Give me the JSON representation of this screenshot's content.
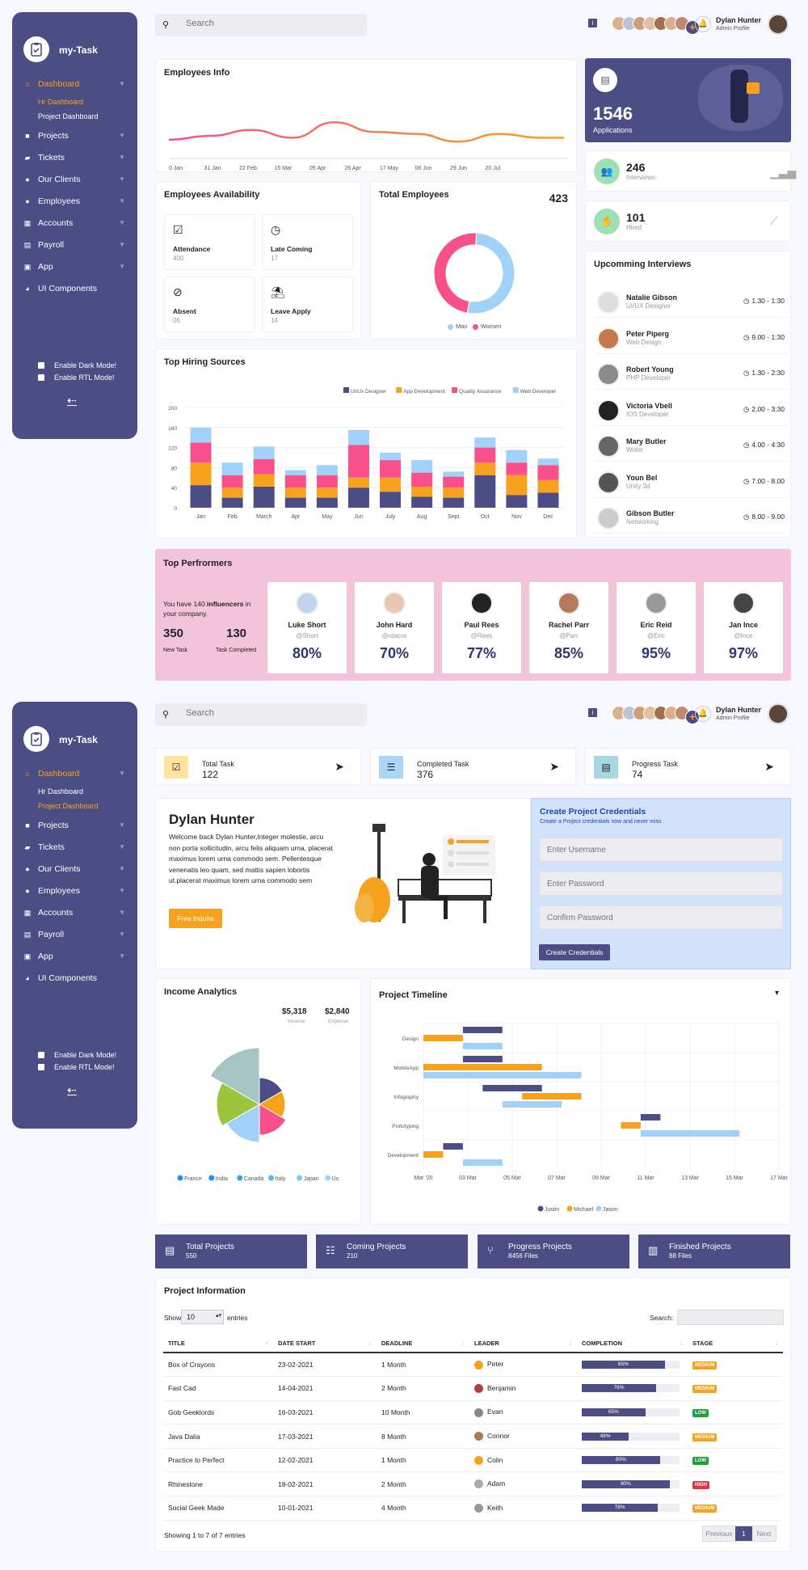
{
  "app": {
    "name": "my-Task"
  },
  "header": {
    "search_placeholder": "Search",
    "info_badge": "i",
    "add_symbol": "+",
    "user_name": "Dylan Hunter",
    "user_role": "Admin Profile"
  },
  "sidebar": {
    "items": [
      {
        "label": "Dashboard",
        "icon": "home-icon"
      },
      {
        "label": "Projects",
        "icon": "briefcase-icon"
      },
      {
        "label": "Tickets",
        "icon": "ticket-icon"
      },
      {
        "label": "Our Clients",
        "icon": "user-icon"
      },
      {
        "label": "Employees",
        "icon": "users-icon"
      },
      {
        "label": "Accounts",
        "icon": "calculator-icon"
      },
      {
        "label": "Payroll",
        "icon": "wallet-icon"
      },
      {
        "label": "App",
        "icon": "app-icon"
      },
      {
        "label": "UI Components",
        "icon": "palette-icon"
      }
    ],
    "sub_items": [
      "Hr Dashboard",
      "Project Dashboard"
    ],
    "dark_mode": "Enable Dark Mode!",
    "rtl_mode": "Enable RTL Mode!",
    "back_arrow": "⇠"
  },
  "hr": {
    "employees_info": {
      "title": "Employees Info",
      "x_labels": [
        "0 Jan",
        "31 Jan",
        "22 Feb",
        "15 Mar",
        "05 Apr",
        "26 Apr",
        "17 May",
        "08 Jun",
        "29 Jun",
        "20 Jul"
      ]
    },
    "availability": {
      "title": "Employees Availability",
      "items": [
        {
          "label": "Attendance",
          "value": "400"
        },
        {
          "label": "Late Coming",
          "value": "17"
        },
        {
          "label": "Absent",
          "value": "06"
        },
        {
          "label": "Leave Apply",
          "value": "14"
        }
      ]
    },
    "total_employees": {
      "title": "Total Employees",
      "value": "423",
      "legend": [
        "Man",
        "Women"
      ]
    },
    "applications": {
      "value": "1546",
      "label": "Applications"
    },
    "interviews": {
      "value": "246",
      "label": "Interviews"
    },
    "hired": {
      "value": "101",
      "label": "Hired"
    },
    "upcoming": {
      "title": "Upcomming Interviews",
      "rows": [
        {
          "name": "Natalie Gibson",
          "role": "UI/UX Designer",
          "time": "1.30 - 1:30"
        },
        {
          "name": "Peter Piperg",
          "role": "Web Design",
          "time": "9.00 - 1:30"
        },
        {
          "name": "Robert Young",
          "role": "PHP Developer",
          "time": "1.30 - 2:30"
        },
        {
          "name": "Victoria Vbell",
          "role": "IOS Developer",
          "time": "2.00 - 3:30"
        },
        {
          "name": "Mary Butler",
          "role": "Writer",
          "time": "4.00 - 4:30"
        },
        {
          "name": "Youn Bel",
          "role": "Unity 3d",
          "time": "7.00 - 8.00"
        },
        {
          "name": "Gibson Butler",
          "role": "Networking",
          "time": "8.00 - 9.00"
        }
      ]
    },
    "performers": {
      "title": "Top Perfrormers",
      "intro_prefix": "You have 140 ",
      "intro_bold": "influencers",
      "intro_suffix": " in your company.",
      "new_task_value": "350",
      "new_task_label": "New Task",
      "completed_value": "130",
      "completed_label": "Task Completed",
      "people": [
        {
          "name": "Luke Short",
          "handle": "@Short",
          "pct": "80%"
        },
        {
          "name": "John Hard",
          "handle": "@rdacre",
          "pct": "70%"
        },
        {
          "name": "Paul Rees",
          "handle": "@Rees",
          "pct": "77%"
        },
        {
          "name": "Rachel Parr",
          "handle": "@Parr",
          "pct": "85%"
        },
        {
          "name": "Eric Reid",
          "handle": "@Eric",
          "pct": "95%"
        },
        {
          "name": "Jan Ince",
          "handle": "@Ince",
          "pct": "97%"
        }
      ]
    }
  },
  "hiring": {
    "title": "Top Hiring Sources"
  },
  "project": {
    "stats": [
      {
        "label": "Total Task",
        "value": "122"
      },
      {
        "label": "Completed Task",
        "value": "376"
      },
      {
        "label": "Progress Task",
        "value": "74"
      }
    ],
    "welcome": {
      "name": "Dylan Hunter",
      "text": "Welcome back Dylan Hunter,Integer molestie, arcu non porta sollicitudin, arcu felis aliquam urna, placerat maximus lorem urna commodo sem. Pellentesque venenatis leo quam, sed mattis sapien lobortis ut.placerat maximus lorem urna commodo sem",
      "button": "Free Inquire"
    },
    "credentials": {
      "title": "Create Project Credentials",
      "subtitle": "Create a Project credentials now and never miss",
      "username": "Enter Username",
      "password": "Enter Password",
      "confirm": "Confirm Password",
      "button": "Create Credentials"
    },
    "income": {
      "title": "Income Analytics",
      "income_value": "$5,318",
      "income_label": "Income",
      "expense_value": "$2,840",
      "expense_label": "Expense"
    },
    "timeline": {
      "title": "Project Timeline",
      "dropdown": "▾"
    },
    "cards": [
      {
        "label": "Total Projects",
        "value": "550"
      },
      {
        "label": "Coming Projects",
        "value": "210"
      },
      {
        "label": "Progress Projects",
        "value": "8456 Files"
      },
      {
        "label": "Finished Projects",
        "value": "88 Files"
      }
    ],
    "info": {
      "title": "Project Information",
      "show": "Show",
      "entries_value": "10",
      "entries": "entries",
      "search": "Search:",
      "columns": [
        "TITLE",
        "DATE START",
        "DEADLINE",
        "LEADER",
        "COMPLETION",
        "STAGE"
      ],
      "rows": [
        {
          "title": "Box of Crayons",
          "start": "23-02-2021",
          "deadline": "1 Month",
          "leader": "Peter",
          "completion": 85,
          "completion_label": "85%",
          "stage": "MEDIUM"
        },
        {
          "title": "Fast Cad",
          "start": "14-04-2021",
          "deadline": "2 Month",
          "leader": "Benjamin",
          "completion": 76,
          "completion_label": "76%",
          "stage": "MEDIUM"
        },
        {
          "title": "Gob Geeklords",
          "start": "16-03-2021",
          "deadline": "10 Month",
          "leader": "Evan",
          "completion": 65,
          "completion_label": "65%",
          "stage": "LOW"
        },
        {
          "title": "Java Dalia",
          "start": "17-03-2021",
          "deadline": "8 Month",
          "leader": "Connor",
          "completion": 48,
          "completion_label": "48%",
          "stage": "MEDIUM"
        },
        {
          "title": "Practice to Perfect",
          "start": "12-02-2021",
          "deadline": "1 Month",
          "leader": "Colin",
          "completion": 80,
          "completion_label": "80%",
          "stage": "LOW"
        },
        {
          "title": "Rhinestone",
          "start": "18-02-2021",
          "deadline": "2 Month",
          "leader": "Adam",
          "completion": 90,
          "completion_label": "90%",
          "stage": "HIGH"
        },
        {
          "title": "Social Geek Made",
          "start": "10-01-2021",
          "deadline": "4 Month",
          "leader": "Keith",
          "completion": 78,
          "completion_label": "78%",
          "stage": "MEDIUM"
        }
      ],
      "footer": "Showing 1 to 7 of 7 entries",
      "prev": "Previous",
      "page": "1",
      "next": "Next"
    }
  },
  "colors": {
    "sidebar": "#4c4d84",
    "accent": "#f7a21e",
    "pink": "#f8508b",
    "blue_light": "#a0d2f9",
    "stage_medium": "#f7a21e",
    "stage_low": "#1e9f3d",
    "stage_high": "#dc3545"
  },
  "chart_data": [
    {
      "type": "line",
      "x": [
        "0 Jan",
        "31 Jan",
        "22 Feb",
        "15 Mar",
        "05 Apr",
        "26 Apr",
        "17 May",
        "08 Jun",
        "29 Jun",
        "20 Jul"
      ],
      "values": [
        40,
        50,
        65,
        45,
        85,
        60,
        55,
        35,
        55,
        45
      ],
      "ylim": [
        0,
        100
      ],
      "grid": false
    },
    {
      "type": "pie",
      "donut": true,
      "labels": [
        "Man",
        "Women"
      ],
      "values": [
        52,
        48
      ]
    },
    {
      "type": "bar",
      "stacked": true,
      "categories": [
        "Jan",
        "Feb",
        "March",
        "Apr",
        "May",
        "Jun",
        "July",
        "Aug",
        "Sept",
        "Oct",
        "Nov",
        "Dec"
      ],
      "series": [
        {
          "name": "UI/Ux Designer",
          "values": [
            45,
            20,
            42,
            20,
            20,
            40,
            32,
            22,
            20,
            65,
            25,
            30
          ]
        },
        {
          "name": "App Development",
          "values": [
            45,
            20,
            25,
            20,
            20,
            20,
            28,
            20,
            20,
            25,
            40,
            25
          ]
        },
        {
          "name": "Quality Assurance",
          "values": [
            40,
            25,
            30,
            25,
            25,
            65,
            35,
            28,
            22,
            30,
            25,
            30
          ]
        },
        {
          "name": "Web Developer",
          "values": [
            30,
            25,
            25,
            10,
            20,
            30,
            15,
            25,
            10,
            20,
            25,
            13
          ]
        }
      ],
      "yticks": [
        0,
        40,
        80,
        120,
        160,
        200
      ],
      "ylim": [
        0,
        200
      ],
      "legend": "top-right"
    },
    {
      "type": "pie",
      "polar": true,
      "labels": [
        "France",
        "India",
        "Canada",
        "Italy",
        "Japan",
        "Us"
      ],
      "values": [
        1,
        1,
        1,
        1,
        1,
        1
      ],
      "radii": [
        33,
        32,
        38,
        47,
        53,
        70
      ],
      "legend": "bottom"
    },
    {
      "type": "bar",
      "orientation": "horizontal",
      "gantt": true,
      "categories": [
        "Design",
        "MobileApp",
        "Infography",
        "Prototyping",
        "Development"
      ],
      "xticks": [
        "Mar '20",
        "03 Mar",
        "05 Mar",
        "07 Mar",
        "09 Mar",
        "11 Mar",
        "13 Mar",
        "15 Mar",
        "17 Mar"
      ],
      "xlim": [
        0,
        18
      ],
      "series": [
        {
          "name": "Justin",
          "ranges": [
            [
              [
                2,
                4
              ]
            ],
            [
              [
                2,
                4
              ]
            ],
            [
              [
                3,
                6
              ]
            ],
            [
              [
                11,
                12
              ]
            ],
            [
              [
                1,
                2
              ]
            ]
          ]
        },
        {
          "name": "Michael",
          "ranges": [
            [
              [
                0,
                2
              ]
            ],
            [
              [
                0,
                6
              ]
            ],
            [
              [
                5,
                8
              ]
            ],
            [
              [
                10,
                11
              ]
            ],
            [
              [
                0,
                1
              ]
            ]
          ]
        },
        {
          "name": "Jason",
          "ranges": [
            [
              [
                2,
                4
              ]
            ],
            [
              [
                0,
                8
              ]
            ],
            [
              [
                4,
                7
              ]
            ],
            [
              [
                11,
                16
              ]
            ],
            [
              [
                2,
                4
              ]
            ]
          ]
        }
      ],
      "legend": "bottom"
    }
  ]
}
